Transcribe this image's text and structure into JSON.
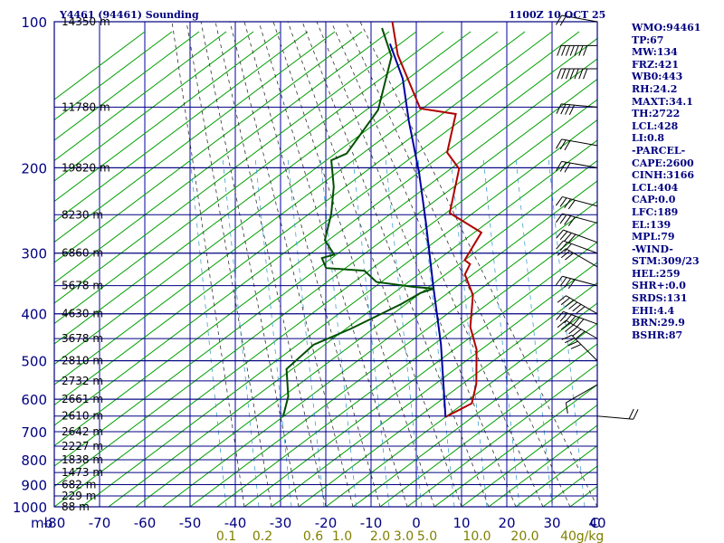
{
  "header": {
    "left_title": "Y4461 (94461) Sounding",
    "right_title": "1100Z 10 OCT 25"
  },
  "stats": [
    "WMO:94461",
    "TP:67",
    "MW:134",
    "FRZ:421",
    "WB0:443",
    "RH:24.2",
    "MAXT:34.1",
    "TH:2722",
    "LCL:428",
    "LI:0.8",
    "-PARCEL-",
    "CAPE:2600",
    "CINH:3166",
    "LCL:404",
    "CAP:0.0",
    "LFC:189",
    "EL:139",
    "MPL:79",
    "-WIND-",
    "STM:309/23",
    "HEL:259",
    "SHR+:0.0",
    "SRDS:131",
    "EHI:4.4",
    "BRN:29.9",
    "BSHR:87"
  ],
  "chart_data": {
    "type": "line",
    "subtype": "skew-T log-P",
    "x_unit_label": "C",
    "y_unit_label": "mb",
    "xlim": [
      -80,
      40
    ],
    "ylim": [
      1000,
      100
    ],
    "y_scale": "log",
    "grid": true,
    "pressure_ticks": [
      100,
      200,
      300,
      400,
      500,
      600,
      700,
      800,
      900,
      1000
    ],
    "temperature_ticks": [
      -80,
      -70,
      -60,
      -50,
      -40,
      -30,
      -20,
      -10,
      0,
      10,
      20,
      30,
      40
    ],
    "height_labels": [
      {
        "p": 100,
        "label": "14350 m"
      },
      {
        "p": 150,
        "label": "11780 m"
      },
      {
        "p": 200,
        "label": "19820 m"
      },
      {
        "p": 250,
        "label": "8230 m"
      },
      {
        "p": 300,
        "label": "6860 m"
      },
      {
        "p": 350,
        "label": "5678 m"
      },
      {
        "p": 400,
        "label": "4630 m"
      },
      {
        "p": 450,
        "label": "3678 m"
      },
      {
        "p": 500,
        "label": "2810 m"
      },
      {
        "p": 550,
        "label": "2732 m"
      },
      {
        "p": 600,
        "label": "2661 m"
      },
      {
        "p": 650,
        "label": "2610 m"
      },
      {
        "p": 700,
        "label": "2642 m"
      },
      {
        "p": 750,
        "label": "2227 m"
      },
      {
        "p": 800,
        "label": "1838 m"
      },
      {
        "p": 850,
        "label": "1473 m"
      },
      {
        "p": 900,
        "label": "682 m"
      },
      {
        "p": 950,
        "label": "229 m"
      },
      {
        "p": 1000,
        "label": "88 m"
      }
    ],
    "mixing_ratio_labels": [
      "0.1",
      "0.2",
      "0.6",
      "1.0",
      "2.0",
      "3.0",
      "5.0",
      "10.0",
      "20.0",
      "40",
      "g/kg"
    ],
    "series": [
      {
        "color": "#b00000",
        "points": [
          [
            -12,
            653
          ],
          [
            -9,
            612
          ],
          [
            -12,
            558
          ],
          [
            -19,
            474
          ],
          [
            -25,
            426
          ],
          [
            -31,
            366
          ],
          [
            -37,
            332
          ],
          [
            -38,
            316
          ],
          [
            -40,
            310
          ],
          [
            -42,
            272
          ],
          [
            -53,
            248
          ],
          [
            -60,
            201
          ],
          [
            -66,
            186
          ],
          [
            -72,
            155
          ],
          [
            -81,
            151
          ],
          [
            -97,
            117
          ],
          [
            -105,
            100
          ]
        ]
      },
      {
        "color": "#0000a0",
        "points": [
          [
            -12,
            653
          ],
          [
            -28,
            462
          ],
          [
            -42,
            348
          ],
          [
            -56,
            261
          ],
          [
            -68,
            205
          ],
          [
            -81,
            160
          ],
          [
            -91,
            131
          ],
          [
            -101,
            111
          ]
        ]
      },
      {
        "color": "#005000",
        "points": [
          [
            -48,
            651
          ],
          [
            -51,
            592
          ],
          [
            -57,
            520
          ],
          [
            -56,
            463
          ],
          [
            -51,
            429
          ],
          [
            -45,
            382
          ],
          [
            -43,
            362
          ],
          [
            -41,
            355
          ],
          [
            -46,
            352
          ],
          [
            -55,
            344
          ],
          [
            -60,
            326
          ],
          [
            -69,
            322
          ],
          [
            -72,
            307
          ],
          [
            -70,
            302
          ],
          [
            -75,
            282
          ],
          [
            -79,
            249
          ],
          [
            -84,
            219
          ],
          [
            -90,
            193
          ],
          [
            -88,
            187
          ],
          [
            -90,
            152
          ],
          [
            -98,
            118
          ],
          [
            -106,
            103
          ]
        ]
      }
    ],
    "wind_barbs": [
      {
        "p": 650,
        "dir": 95,
        "spd": 15
      },
      {
        "p": 560,
        "dir": 240,
        "spd": 10
      },
      {
        "p": 500,
        "dir": 315,
        "spd": 35
      },
      {
        "p": 450,
        "dir": 300,
        "spd": 55
      },
      {
        "p": 420,
        "dir": 290,
        "spd": 60
      },
      {
        "p": 400,
        "dir": 300,
        "spd": 55
      },
      {
        "p": 350,
        "dir": 285,
        "spd": 35
      },
      {
        "p": 320,
        "dir": 300,
        "spd": 30
      },
      {
        "p": 300,
        "dir": 290,
        "spd": 30
      },
      {
        "p": 285,
        "dir": 290,
        "spd": 35
      },
      {
        "p": 260,
        "dir": 285,
        "spd": 40
      },
      {
        "p": 240,
        "dir": 285,
        "spd": 35
      },
      {
        "p": 200,
        "dir": 280,
        "spd": 25
      },
      {
        "p": 180,
        "dir": 280,
        "spd": 30
      },
      {
        "p": 150,
        "dir": 275,
        "spd": 35
      },
      {
        "p": 125,
        "dir": 270,
        "spd": 65
      },
      {
        "p": 112,
        "dir": 270,
        "spd": 75
      },
      {
        "p": 100,
        "dir": 280,
        "spd": 20
      }
    ],
    "colors": {
      "frame": "#000080",
      "isotherm": "#0000a0",
      "isobar": "#000080",
      "dry_adiabat": "#00a000",
      "moist_adiabat": "#303030",
      "mixing_ratio": "#40a0d0"
    }
  }
}
